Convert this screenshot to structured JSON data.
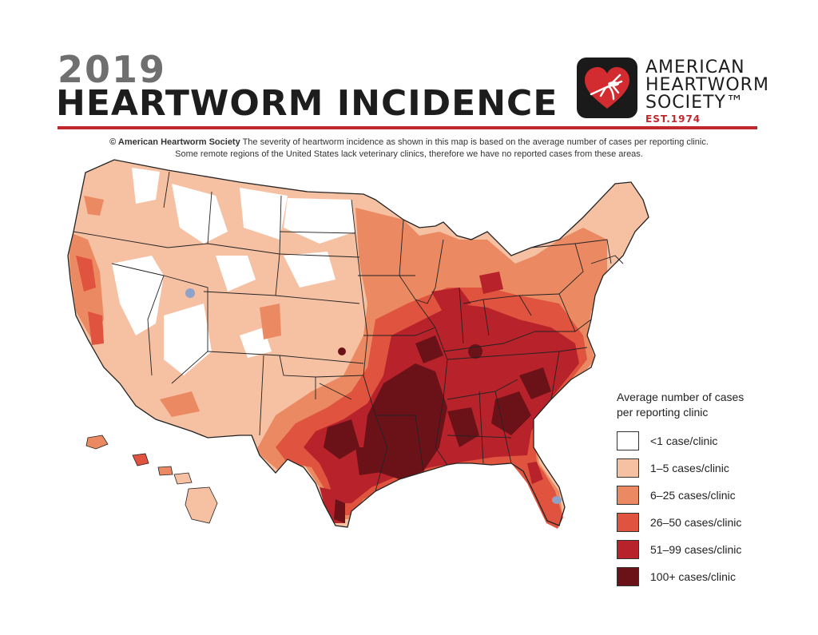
{
  "header": {
    "year": "2019",
    "title": "HEARTWORM INCIDENCE"
  },
  "logo": {
    "line1": "AMERICAN",
    "line2": "HEARTWORM",
    "line3": "SOCIETY™",
    "est": "EST.1974"
  },
  "caption": {
    "org": "© American Heartworm Society",
    "line1": "The severity of heartworm incidence as shown in this map is based on the average number of cases per reporting clinic.",
    "line2": "Some remote regions of the United States lack veterinary clinics, therefore we have no reported cases from these areas."
  },
  "legend": {
    "title_line1": "Average number of cases",
    "title_line2": "per reporting clinic",
    "items": [
      {
        "label": "<1 case/clinic",
        "color": "#ffffff"
      },
      {
        "label": "1–5 cases/clinic",
        "color": "#f6c0a2"
      },
      {
        "label": "6–25 cases/clinic",
        "color": "#eb8a62"
      },
      {
        "label": "26–50 cases/clinic",
        "color": "#e0533e"
      },
      {
        "label": "51–99 cases/clinic",
        "color": "#b8222a"
      },
      {
        "label": "100+ cases/clinic",
        "color": "#6b1219"
      }
    ]
  },
  "map": {
    "no_data_color": "#8fa3c8",
    "border_color": "#222222"
  }
}
